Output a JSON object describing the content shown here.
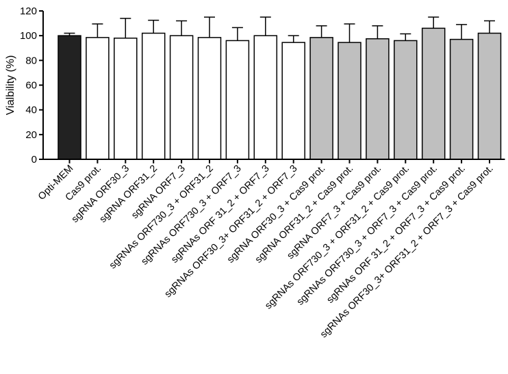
{
  "chart_data": {
    "type": "bar",
    "ylabel": "Vialbility (%)",
    "ylim": [
      0,
      120
    ],
    "yticks": [
      0,
      20,
      40,
      60,
      80,
      100,
      120
    ],
    "grid": false,
    "categories": [
      "Opti-MEM",
      "Cas9 prot.",
      "sgRNA ORF30_3",
      "sgRNA ORF31_2",
      "sgRNA ORF7_3",
      "sgRNAs ORF730_3 + ORF31_2",
      "sgRNAs ORF730_3 + ORF7_3",
      "sgRNAs ORF 31_2 + ORF7_3",
      "sgRNAs ORF30_3+ ORF31_2 + ORF7_3",
      "sgRNA ORF30_3 + Cas9 prot.",
      "sgRNA ORF31_2 + Cas9 prot.",
      "sgRNA ORF7_3 + Cas9 prot.",
      "sgRNAs ORF730_3 + ORF31_2 + Cas9 prot.",
      "sgRNAs ORF730_3 + ORF7_3 + Cas9 prot.",
      "sgRNAs ORF 31_2 + ORF7_3 + Cas9 prot.",
      "sgRNAs ORF30_3+ ORF31_2 + ORF7_3 + Cas9 prot."
    ],
    "values": [
      100,
      98.5,
      98,
      102,
      100,
      98.5,
      96,
      100,
      94.5,
      98.5,
      94.5,
      97.5,
      96,
      106,
      97,
      102
    ],
    "errors": [
      2,
      11,
      16,
      10.5,
      12,
      16.5,
      10.5,
      15,
      5.5,
      9.5,
      15,
      10.5,
      5.5,
      9,
      12,
      10
    ],
    "bar_colors": [
      "#222222",
      "#ffffff",
      "#ffffff",
      "#ffffff",
      "#ffffff",
      "#ffffff",
      "#ffffff",
      "#ffffff",
      "#ffffff",
      "#bfbfbf",
      "#bfbfbf",
      "#bfbfbf",
      "#bfbfbf",
      "#bfbfbf",
      "#bfbfbf",
      "#bfbfbf"
    ]
  }
}
